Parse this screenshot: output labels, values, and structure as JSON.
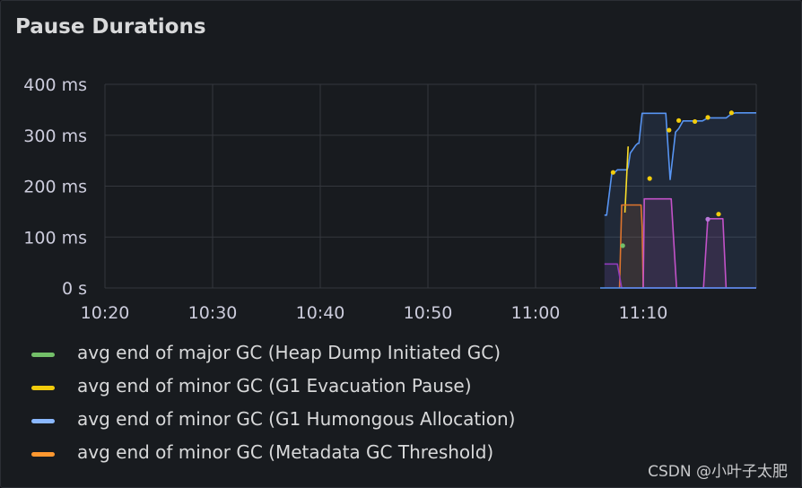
{
  "panel": {
    "title": "Pause Durations"
  },
  "watermark": "CSDN @小叶子太肥",
  "chart_data": {
    "type": "line",
    "title": "Pause Durations",
    "xlabel": "",
    "ylabel": "",
    "x_ticks": [
      "10:20",
      "10:30",
      "10:40",
      "10:50",
      "11:00",
      "11:10"
    ],
    "xlim": [
      1,
      61.5
    ],
    "y_ticks": [
      "0 s",
      "100 ms",
      "200 ms",
      "300 ms",
      "400 ms"
    ],
    "ylim": [
      0,
      400
    ],
    "grid": true,
    "legend_position": "bottom",
    "legend": [
      {
        "label": "avg end of major GC (Heap Dump Initiated GC)",
        "color": "#73bf69"
      },
      {
        "label": "avg end of minor GC (G1 Evacuation Pause)",
        "color": "#f2cc0c"
      },
      {
        "label": "avg end of minor GC (G1 Humongous Allocation)",
        "color": "#8ab8ff"
      },
      {
        "label": "avg end of minor GC (Metadata GC Threshold)",
        "color": "#ff9830"
      }
    ],
    "series": [
      {
        "color": "#5794f2",
        "fill": true,
        "x": [
          47.4,
          47.6,
          48.1,
          48.4,
          48.6,
          49.5,
          49.6,
          49.8,
          50.3,
          50.5,
          50.6,
          50.9,
          51.1,
          53.1,
          53.5,
          54.0,
          54.3,
          54.7,
          55.1,
          56.5,
          57.0,
          58.7,
          59.2,
          59.6,
          60.5,
          61.5
        ],
        "y": [
          143,
          143,
          228,
          228,
          232,
          232,
          238,
          265,
          280,
          284,
          284,
          343,
          343,
          343,
          213,
          306,
          313,
          328,
          328,
          328,
          334,
          334,
          342,
          344,
          344,
          344
        ]
      },
      {
        "color": "#fade2a",
        "fill": false,
        "x": [
          49.3,
          49.6
        ],
        "y": [
          148,
          278
        ]
      },
      {
        "color": "#e0752d",
        "fill": true,
        "x": [
          48.8,
          49.0,
          50.8,
          50.9,
          51.0
        ],
        "y": [
          0,
          163,
          163,
          120,
          0
        ]
      },
      {
        "color": "#c252c8",
        "fill": true,
        "x": [
          51.0,
          51.1,
          53.6,
          54.1,
          56.6,
          57.0,
          58.4,
          58.7
        ],
        "y": [
          0,
          175,
          175,
          0,
          0,
          136,
          136,
          0
        ]
      },
      {
        "color": "#8f3bb8",
        "fill": true,
        "x": [
          47.4,
          47.5,
          48.6,
          49.0,
          61.5
        ],
        "y": [
          47,
          47,
          47,
          0,
          0
        ]
      },
      {
        "color": "#5794f2",
        "fill": false,
        "x": [
          47.0,
          61.5
        ],
        "y": [
          0,
          0
        ]
      }
    ],
    "points": [
      {
        "x": 48.2,
        "y": 227,
        "color": "#f2cc0c"
      },
      {
        "x": 49.1,
        "y": 83,
        "color": "#73bf69"
      },
      {
        "x": 51.6,
        "y": 215,
        "color": "#f2cc0c"
      },
      {
        "x": 53.4,
        "y": 310,
        "color": "#f2cc0c"
      },
      {
        "x": 54.3,
        "y": 329,
        "color": "#f2cc0c"
      },
      {
        "x": 55.8,
        "y": 327,
        "color": "#f2cc0c"
      },
      {
        "x": 57.0,
        "y": 335,
        "color": "#f2cc0c"
      },
      {
        "x": 57.0,
        "y": 135,
        "color": "#b877d9"
      },
      {
        "x": 58.0,
        "y": 145,
        "color": "#f2cc0c"
      },
      {
        "x": 59.2,
        "y": 344,
        "color": "#f2cc0c"
      }
    ]
  }
}
